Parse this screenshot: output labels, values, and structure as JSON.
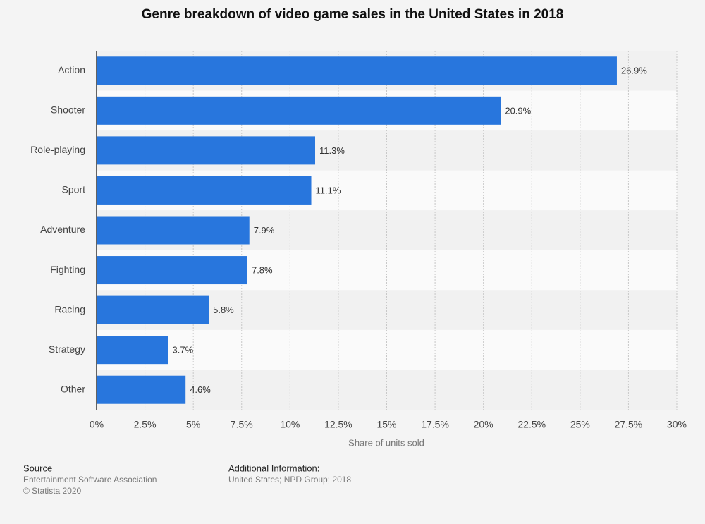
{
  "chart_data": {
    "type": "barh",
    "title": "Genre breakdown of video game sales in the United States in 2018",
    "categories": [
      "Action",
      "Shooter",
      "Role-playing",
      "Sport",
      "Adventure",
      "Fighting",
      "Racing",
      "Strategy",
      "Other"
    ],
    "values": [
      26.9,
      20.9,
      11.3,
      11.1,
      7.9,
      7.8,
      5.8,
      3.7,
      4.6
    ],
    "value_labels": [
      "26.9%",
      "20.9%",
      "11.3%",
      "11.1%",
      "7.9%",
      "7.8%",
      "5.8%",
      "3.7%",
      "4.6%"
    ],
    "color": "#2876dd",
    "xlabel": "Share of units sold",
    "xlim": [
      0,
      30
    ],
    "xticks": [
      {
        "value": 0,
        "label": "0%"
      },
      {
        "value": 2.5,
        "label": "2.5%"
      },
      {
        "value": 5,
        "label": "5%"
      },
      {
        "value": 7.5,
        "label": "7.5%"
      },
      {
        "value": 10,
        "label": "10%"
      },
      {
        "value": 12.5,
        "label": "12.5%"
      },
      {
        "value": 15,
        "label": "15%"
      },
      {
        "value": 17.5,
        "label": "17.5%"
      },
      {
        "value": 20,
        "label": "20%"
      },
      {
        "value": 22.5,
        "label": "22.5%"
      },
      {
        "value": 25,
        "label": "25%"
      },
      {
        "value": 27.5,
        "label": "27.5%"
      },
      {
        "value": 30,
        "label": "30%"
      }
    ],
    "grid": true,
    "source": {
      "heading": "Source",
      "lines": [
        "Entertainment Software Association",
        "© Statista 2020"
      ]
    },
    "additional_info": {
      "heading": "Additional Information:",
      "lines": [
        "United States; NPD Group; 2018"
      ]
    }
  }
}
